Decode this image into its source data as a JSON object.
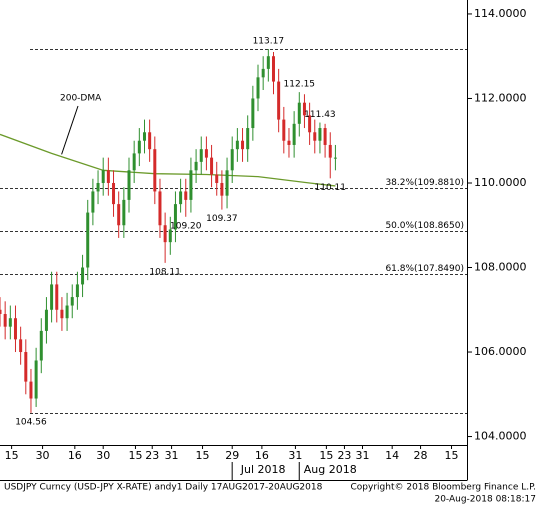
{
  "chart_data": {
    "type": "candlestick",
    "up_color": "#2f8f2f",
    "down_color": "#d42a2a",
    "xlim": [
      0,
      362
    ],
    "ylim": [
      103.8,
      114.33
    ],
    "yticks": [
      {
        "value": 104,
        "label": "104.0000"
      },
      {
        "value": 106,
        "label": "106.0000"
      },
      {
        "value": 108,
        "label": "108.0000"
      },
      {
        "value": 110,
        "label": "110.0000"
      },
      {
        "value": 112,
        "label": "112.0000"
      },
      {
        "value": 114,
        "label": "114.0000"
      }
    ],
    "xticks": [
      {
        "value": 9,
        "label": "15"
      },
      {
        "value": 33,
        "label": "30"
      },
      {
        "value": 58,
        "label": "16"
      },
      {
        "value": 80,
        "label": "30"
      },
      {
        "value": 105,
        "label": "15"
      },
      {
        "value": 118,
        "label": "23"
      },
      {
        "value": 133,
        "label": "31"
      },
      {
        "value": 157,
        "label": "15"
      },
      {
        "value": 180,
        "label": "29"
      },
      {
        "value": 203,
        "label": "16"
      },
      {
        "value": 229,
        "label": "31"
      },
      {
        "value": 253,
        "label": "15"
      },
      {
        "value": 267,
        "label": "23"
      },
      {
        "value": 281,
        "label": "31"
      },
      {
        "value": 304,
        "label": "14"
      },
      {
        "value": 326,
        "label": "28"
      },
      {
        "value": 350,
        "label": "15"
      }
    ],
    "month_labels": [
      {
        "value": 204,
        "label": "Jul 2018"
      },
      {
        "value": 256,
        "label": "Aug 2018"
      }
    ],
    "x": [
      0,
      4,
      8,
      12,
      16,
      20,
      24,
      28,
      32,
      36,
      40,
      44,
      48,
      52,
      56,
      60,
      64,
      68,
      72,
      76,
      80,
      84,
      88,
      92,
      96,
      100,
      104,
      108,
      112,
      116,
      120,
      124,
      128,
      132,
      136,
      140,
      144,
      148,
      152,
      156,
      160,
      164,
      168,
      172,
      176,
      180,
      184,
      188,
      192,
      196,
      200,
      204,
      208,
      212,
      216,
      220,
      224,
      228,
      232,
      236,
      240,
      244,
      248,
      252,
      256,
      260
    ],
    "open": [
      107.0,
      106.9,
      106.6,
      106.8,
      106.3,
      106.0,
      105.3,
      104.9,
      105.8,
      106.5,
      107.0,
      107.6,
      107.0,
      106.8,
      107.1,
      107.3,
      107.6,
      108.0,
      109.3,
      109.8,
      110.0,
      110.3,
      110.0,
      109.5,
      109.0,
      109.6,
      110.3,
      110.7,
      111.0,
      111.2,
      110.8,
      109.8,
      109.0,
      108.6,
      108.9,
      109.5,
      109.8,
      109.6,
      110.3,
      110.5,
      110.8,
      110.6,
      110.2,
      110.0,
      109.7,
      110.3,
      110.8,
      111.0,
      110.8,
      111.3,
      112.0,
      112.5,
      112.7,
      113.0,
      112.4,
      111.5,
      111.0,
      110.9,
      111.4,
      111.9,
      111.6,
      111.2,
      111.0,
      111.3,
      110.9,
      110.6
    ],
    "high": [
      107.3,
      107.2,
      107.1,
      107.1,
      106.6,
      106.3,
      105.6,
      106.1,
      106.8,
      107.3,
      107.9,
      107.9,
      107.3,
      107.4,
      107.6,
      107.9,
      108.3,
      109.6,
      110.1,
      110.3,
      110.6,
      110.6,
      110.3,
      109.8,
      109.9,
      110.6,
      111.0,
      111.3,
      111.5,
      111.5,
      111.1,
      110.1,
      109.3,
      109.2,
      109.8,
      110.1,
      110.1,
      110.6,
      110.8,
      111.1,
      111.1,
      110.9,
      110.5,
      110.3,
      110.6,
      111.1,
      111.3,
      111.3,
      111.6,
      112.3,
      112.8,
      113.0,
      113.17,
      113.1,
      112.7,
      111.8,
      111.3,
      111.7,
      112.15,
      112.1,
      111.9,
      111.5,
      111.43,
      111.4,
      111.2,
      110.9
    ],
    "low": [
      106.6,
      106.3,
      106.3,
      106.0,
      105.7,
      105.0,
      104.56,
      104.7,
      105.5,
      106.2,
      106.7,
      106.7,
      106.5,
      106.5,
      106.8,
      107.0,
      107.3,
      107.7,
      109.0,
      109.5,
      109.7,
      109.7,
      109.2,
      108.7,
      108.7,
      109.3,
      110.0,
      110.4,
      110.7,
      110.5,
      109.5,
      108.7,
      108.11,
      108.3,
      108.6,
      109.3,
      109.2,
      109.3,
      110.0,
      110.2,
      110.3,
      109.9,
      109.7,
      109.37,
      109.4,
      110.0,
      110.5,
      110.5,
      110.5,
      111.0,
      111.7,
      112.2,
      112.4,
      112.1,
      111.2,
      110.7,
      110.6,
      110.6,
      111.1,
      111.3,
      110.9,
      110.7,
      110.7,
      110.6,
      110.11,
      110.3
    ],
    "close": [
      106.9,
      106.6,
      106.8,
      106.3,
      106.0,
      105.3,
      104.9,
      105.8,
      106.5,
      107.0,
      107.6,
      107.0,
      106.8,
      107.1,
      107.3,
      107.6,
      108.0,
      109.3,
      109.8,
      110.0,
      110.3,
      110.0,
      109.5,
      109.0,
      109.6,
      110.3,
      110.7,
      111.0,
      111.2,
      110.8,
      109.8,
      109.0,
      108.6,
      108.9,
      109.5,
      109.8,
      109.6,
      110.3,
      110.5,
      110.8,
      110.6,
      110.2,
      110.0,
      109.7,
      110.3,
      110.8,
      111.0,
      110.8,
      111.3,
      112.0,
      112.5,
      112.7,
      113.0,
      112.4,
      111.5,
      111.0,
      110.9,
      111.4,
      111.9,
      111.6,
      111.2,
      111.0,
      111.3,
      110.9,
      110.6,
      110.6
    ],
    "moving_average": {
      "name": "200-DMA",
      "color": "#6b9a2a",
      "x": [
        0,
        40,
        80,
        120,
        160,
        200,
        240,
        260
      ],
      "values": [
        111.15,
        110.7,
        110.3,
        110.22,
        110.2,
        110.15,
        110.0,
        109.93
      ]
    },
    "fib_levels": [
      {
        "value": 109.881,
        "label": "38.2%(109.8810)"
      },
      {
        "value": 108.865,
        "label": "50.0%(108.8650)"
      },
      {
        "value": 107.849,
        "label": "61.8%(107.8490)"
      }
    ],
    "extreme_lines": [
      113.17,
      104.56
    ],
    "annotations": [
      {
        "x": 208,
        "value": 113.17,
        "label": "113.17",
        "pos": "above"
      },
      {
        "x": 232,
        "value": 112.15,
        "label": "112.15",
        "pos": "above"
      },
      {
        "x": 248,
        "value": 111.43,
        "label": "111.43",
        "pos": "above"
      },
      {
        "x": 256,
        "value": 110.11,
        "label": "110.11",
        "pos": "below"
      },
      {
        "x": 128,
        "value": 108.11,
        "label": "108.11",
        "pos": "below"
      },
      {
        "x": 144,
        "value": 109.2,
        "label": "109.20",
        "pos": "below"
      },
      {
        "x": 172,
        "value": 109.37,
        "label": "109.37",
        "pos": "below"
      },
      {
        "x": 24,
        "value": 104.56,
        "label": "104.56",
        "pos": "below"
      }
    ],
    "footer_left": "USDJPY Curncy (USD-JPY X-RATE) andy1  Daily 17AUG2017-20AUG2018",
    "footer_right": "Copyright© 2018 Bloomberg Finance L.P.",
    "footer_date": "20-Aug-2018 08:18:17"
  }
}
